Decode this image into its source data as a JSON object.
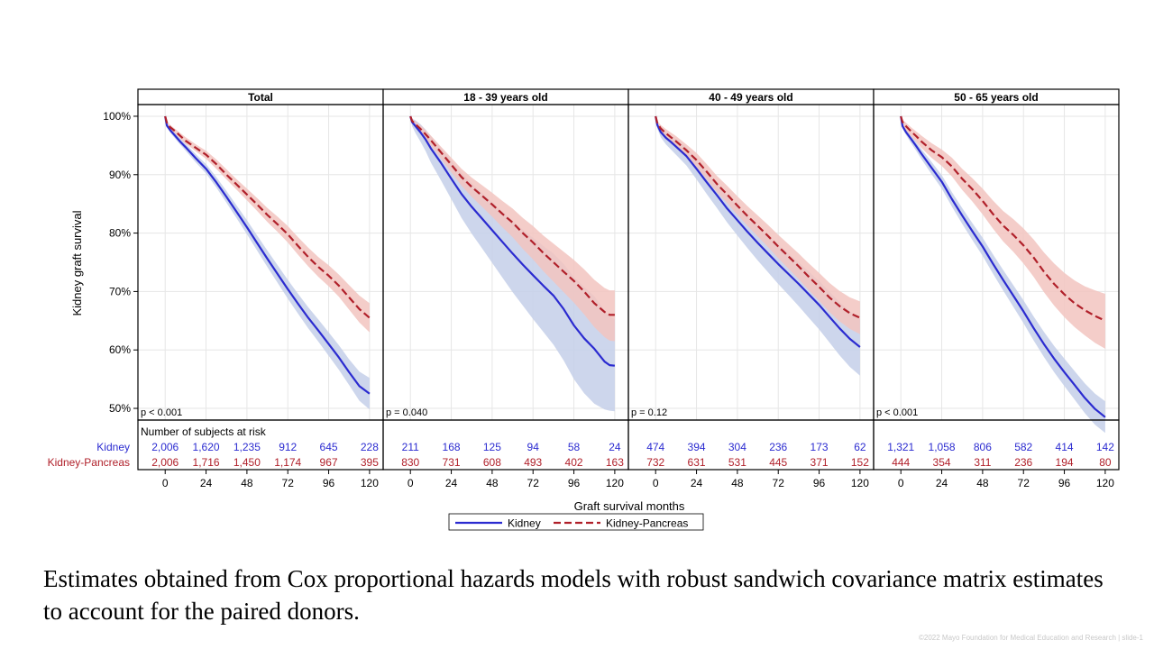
{
  "colors": {
    "kidney": "#2b2bd0",
    "kidney_pancreas": "#b0202a",
    "kidney_band": "#c4cfe9",
    "kidney_pancreas_band": "#f2c4c0"
  },
  "caption": "Estimates obtained from Cox proportional hazards models with robust sandwich covariance matrix estimates to account for the paired donors.",
  "footer": "©2022 Mayo Foundation for Medical Education and Research | slide-1",
  "chart_data": {
    "type": "line",
    "ylabel": "Kidney graft survival",
    "xlabel": "Graft survival months",
    "ylim": [
      48,
      102
    ],
    "xlim": [
      -16,
      128
    ],
    "yticks": [
      "100%",
      "90%",
      "80%",
      "70%",
      "60%",
      "50%"
    ],
    "ytick_values": [
      100,
      90,
      80,
      70,
      60,
      50
    ],
    "xticks": [
      "0",
      "24",
      "48",
      "72",
      "96",
      "120"
    ],
    "xtick_values": [
      0,
      24,
      48,
      72,
      96,
      120
    ],
    "grid": true,
    "legend": [
      "Kidney",
      "Kidney-Pancreas"
    ],
    "legend_position": "bottom",
    "at_risk_title": "Number of subjects at risk",
    "at_risk_labels": [
      "Kidney",
      "Kidney-Pancreas"
    ],
    "panels": [
      {
        "title": "Total",
        "pvalue": "p < 0.001",
        "at_risk": {
          "kidney": [
            "2,006",
            "1,620",
            "1,235",
            "912",
            "645",
            "228"
          ],
          "kidney_pancreas": [
            "2,006",
            "1,716",
            "1,450",
            "1,174",
            "967",
            "395"
          ]
        },
        "series": [
          {
            "name": "Kidney",
            "x": [
              0,
              1,
              3,
              6,
              9,
              12,
              18,
              24,
              30,
              36,
              42,
              48,
              54,
              60,
              66,
              72,
              78,
              84,
              90,
              96,
              102,
              108,
              114,
              120
            ],
            "y": [
              100,
              98.4,
              97.6,
              96.6,
              95.6,
              94.7,
              92.8,
              91.0,
              88.7,
              86.2,
              83.6,
              81.0,
              78.3,
              75.6,
              73.0,
              70.4,
              67.9,
              65.5,
              63.3,
              61.0,
              58.7,
              56.2,
              53.8,
              52.5
            ],
            "lower": [
              100,
              98.1,
              97.2,
              96.1,
              95.1,
              94.1,
              92.1,
              90.2,
              87.8,
              85.2,
              82.5,
              79.8,
              77.0,
              74.2,
              71.5,
              68.8,
              66.2,
              63.7,
              61.4,
              59.0,
              56.6,
              54.0,
              51.3,
              49.8
            ],
            "upper": [
              100,
              98.7,
              98.0,
              97.1,
              96.2,
              95.3,
              93.5,
              91.8,
              89.6,
              87.2,
              84.7,
              82.2,
              79.6,
              77.0,
              74.5,
              72.0,
              69.6,
              67.3,
              65.2,
              63.0,
              60.8,
              58.4,
              56.3,
              55.2
            ]
          },
          {
            "name": "Kidney-Pancreas",
            "x": [
              0,
              1,
              3,
              6,
              9,
              12,
              18,
              24,
              30,
              36,
              42,
              48,
              54,
              60,
              66,
              72,
              78,
              84,
              90,
              96,
              102,
              108,
              114,
              120
            ],
            "y": [
              100,
              98.9,
              98.1,
              97.4,
              96.6,
              95.8,
              94.6,
              93.4,
              91.8,
              90.0,
              88.3,
              86.6,
              84.9,
              83.1,
              81.5,
              79.8,
              77.8,
              75.9,
              74.2,
              72.7,
              71.0,
              69.0,
              67.0,
              65.5
            ],
            "lower": [
              100,
              98.6,
              97.8,
              97.0,
              96.1,
              95.3,
              94.0,
              92.7,
              91.0,
              89.2,
              87.4,
              85.6,
              83.8,
              81.9,
              80.2,
              78.4,
              76.3,
              74.3,
              72.5,
              70.9,
              69.1,
              66.9,
              64.7,
              63.0
            ],
            "upper": [
              100,
              99.2,
              98.5,
              97.8,
              97.1,
              96.4,
              95.2,
              94.1,
              92.6,
              90.9,
              89.2,
              87.6,
              86.0,
              84.3,
              82.8,
              81.2,
              79.3,
              77.5,
              75.9,
              74.5,
              72.9,
              71.1,
              69.3,
              68.0
            ]
          }
        ]
      },
      {
        "title": "18 - 39 years old",
        "pvalue": "p = 0.040",
        "at_risk": {
          "kidney": [
            "211",
            "168",
            "125",
            "94",
            "58",
            "24"
          ],
          "kidney_pancreas": [
            "830",
            "731",
            "608",
            "493",
            "402",
            "163"
          ]
        },
        "series": [
          {
            "name": "Kidney",
            "x": [
              0,
              1,
              3,
              6,
              9,
              12,
              18,
              24,
              30,
              36,
              42,
              48,
              54,
              60,
              66,
              72,
              78,
              84,
              90,
              96,
              102,
              108,
              114,
              117,
              120
            ],
            "y": [
              100,
              99.0,
              98.3,
              97.2,
              96.0,
              94.5,
              92.0,
              89.3,
              86.7,
              84.5,
              82.5,
              80.5,
              78.5,
              76.5,
              74.6,
              72.8,
              71.0,
              69.3,
              67.0,
              64.2,
              62.0,
              60.2,
              58.0,
              57.4,
              57.3
            ],
            "lower": [
              100,
              98.3,
              97.1,
              95.6,
              94.0,
              92.1,
              89.0,
              85.8,
              82.6,
              79.9,
              77.4,
              74.9,
              72.4,
              69.9,
              67.6,
              65.3,
              63.1,
              60.9,
              58.2,
              55.0,
              52.6,
              50.8,
              49.8,
              49.6,
              49.5
            ],
            "upper": [
              100,
              99.6,
              99.3,
              98.6,
              97.7,
              96.6,
              94.6,
              92.4,
              90.3,
              88.5,
              86.9,
              85.3,
              83.7,
              82.1,
              80.6,
              79.2,
              77.8,
              76.5,
              74.7,
              72.5,
              70.8,
              69.2,
              66.8,
              65.7,
              65.3
            ]
          },
          {
            "name": "Kidney-Pancreas",
            "x": [
              0,
              1,
              3,
              6,
              9,
              12,
              18,
              24,
              30,
              36,
              42,
              48,
              54,
              60,
              66,
              72,
              78,
              84,
              90,
              96,
              102,
              108,
              114,
              117,
              120
            ],
            "y": [
              100,
              99.2,
              98.6,
              97.8,
              96.9,
              95.9,
              93.8,
              91.7,
              89.6,
              87.9,
              86.4,
              84.9,
              83.3,
              81.8,
              80.0,
              78.4,
              76.6,
              75.0,
              73.4,
              71.8,
              70.0,
              68.0,
              66.5,
              66.0,
              66.0
            ],
            "lower": [
              100,
              98.9,
              98.1,
              97.2,
              96.1,
              95.0,
              92.7,
              90.4,
              88.1,
              86.2,
              84.5,
              82.8,
              81.0,
              79.3,
              77.3,
              75.5,
              73.5,
              71.7,
              69.9,
              68.1,
              66.1,
              63.9,
              62.2,
              61.6,
              61.5
            ],
            "upper": [
              100,
              99.5,
              99.1,
              98.4,
              97.6,
              96.7,
              94.8,
              92.9,
              91.0,
              89.5,
              88.2,
              86.9,
              85.5,
              84.2,
              82.6,
              81.2,
              79.6,
              78.2,
              76.8,
              75.4,
              73.8,
              72.0,
              70.6,
              70.2,
              70.2
            ]
          }
        ]
      },
      {
        "title": "40 - 49 years old",
        "pvalue": "p = 0.12",
        "at_risk": {
          "kidney": [
            "474",
            "394",
            "304",
            "236",
            "173",
            "62"
          ],
          "kidney_pancreas": [
            "732",
            "631",
            "531",
            "445",
            "371",
            "152"
          ]
        },
        "series": [
          {
            "name": "Kidney",
            "x": [
              0,
              1,
              3,
              6,
              9,
              12,
              18,
              24,
              30,
              36,
              42,
              48,
              54,
              60,
              66,
              72,
              78,
              84,
              90,
              96,
              102,
              108,
              114,
              120
            ],
            "y": [
              100,
              98.5,
              97.3,
              96.3,
              95.6,
              94.8,
              93.2,
              91.0,
              88.7,
              86.5,
              84.2,
              82.2,
              80.2,
              78.3,
              76.5,
              74.7,
              73.0,
              71.3,
              69.5,
              67.7,
              65.7,
              63.7,
              61.9,
              60.5
            ],
            "lower": [
              100,
              97.9,
              96.4,
              95.2,
              94.3,
              93.4,
              91.6,
              89.2,
              86.7,
              84.3,
              81.8,
              79.6,
              77.4,
              75.3,
              73.3,
              71.3,
              69.4,
              67.5,
              65.5,
              63.5,
              61.3,
              59.1,
              57.1,
              55.6
            ],
            "upper": [
              100,
              99.0,
              98.1,
              97.3,
              96.7,
              96.1,
              94.7,
              92.7,
              90.6,
              88.6,
              86.5,
              84.7,
              82.9,
              81.2,
              79.6,
              78.0,
              76.5,
              75.0,
              73.4,
              71.8,
              70.0,
              68.2,
              66.6,
              65.4
            ]
          },
          {
            "name": "Kidney-Pancreas",
            "x": [
              0,
              1,
              3,
              6,
              9,
              12,
              18,
              24,
              30,
              36,
              42,
              48,
              54,
              60,
              66,
              72,
              78,
              84,
              90,
              96,
              102,
              108,
              114,
              120
            ],
            "y": [
              100,
              98.8,
              97.9,
              97.1,
              96.4,
              95.7,
              94.2,
              92.5,
              90.5,
              88.4,
              86.6,
              84.7,
              82.9,
              81.2,
              79.5,
              77.7,
              76.0,
              74.3,
              72.5,
              70.8,
              69.0,
              67.5,
              66.3,
              65.5
            ],
            "lower": [
              100,
              98.4,
              97.3,
              96.4,
              95.6,
              94.8,
              93.2,
              91.3,
              89.2,
              87.0,
              85.1,
              83.1,
              81.2,
              79.4,
              77.6,
              75.7,
              73.9,
              72.1,
              70.2,
              68.4,
              66.5,
              64.9,
              63.6,
              62.7
            ],
            "upper": [
              100,
              99.2,
              98.5,
              97.8,
              97.2,
              96.6,
              95.2,
              93.7,
              91.8,
              89.8,
              88.1,
              86.3,
              84.6,
              83.0,
              81.4,
              79.7,
              78.1,
              76.5,
              74.8,
              73.2,
              71.5,
              70.1,
              69.0,
              68.3
            ]
          }
        ]
      },
      {
        "title": "50 - 65 years old",
        "pvalue": "p < 0.001",
        "at_risk": {
          "kidney": [
            "1,321",
            "1,058",
            "806",
            "582",
            "414",
            "142"
          ],
          "kidney_pancreas": [
            "444",
            "354",
            "311",
            "236",
            "194",
            "80"
          ]
        },
        "series": [
          {
            "name": "Kidney",
            "x": [
              0,
              1,
              3,
              6,
              9,
              12,
              18,
              24,
              30,
              36,
              42,
              48,
              54,
              60,
              66,
              72,
              78,
              84,
              90,
              96,
              102,
              108,
              114,
              120
            ],
            "y": [
              100,
              98.3,
              97.3,
              96.1,
              94.9,
              93.6,
              91.2,
              88.8,
              85.8,
              83.0,
              80.3,
              77.7,
              74.8,
              72.0,
              69.3,
              66.6,
              63.7,
              61.0,
              58.5,
              56.2,
              54.0,
              51.8,
              49.9,
              48.5
            ],
            "lower": [
              100,
              97.9,
              96.8,
              95.4,
              94.1,
              92.7,
              90.1,
              87.6,
              84.5,
              81.6,
              78.8,
              76.1,
              73.1,
              70.2,
              67.4,
              64.6,
              61.6,
              58.8,
              56.2,
              53.8,
              51.5,
              49.2,
              47.2,
              45.8
            ],
            "upper": [
              100,
              98.7,
              97.8,
              96.7,
              95.6,
              94.4,
              92.2,
              89.9,
              87.0,
              84.3,
              81.7,
              79.2,
              76.4,
              73.7,
              71.1,
              68.5,
              65.7,
              63.1,
              60.7,
              58.5,
              56.4,
              54.3,
              52.5,
              51.2
            ]
          },
          {
            "name": "Kidney-Pancreas",
            "x": [
              0,
              1,
              3,
              6,
              9,
              12,
              18,
              24,
              30,
              36,
              42,
              48,
              54,
              60,
              66,
              72,
              78,
              84,
              90,
              96,
              102,
              108,
              114,
              120
            ],
            "y": [
              100,
              99.0,
              98.3,
              97.4,
              96.6,
              95.7,
              94.2,
              93.0,
              91.4,
              89.3,
              87.5,
              85.5,
              83.3,
              81.3,
              79.7,
              77.9,
              75.8,
              73.4,
              71.3,
              69.5,
              68.0,
              66.8,
              65.8,
              65.0
            ],
            "lower": [
              100,
              98.5,
              97.6,
              96.6,
              95.6,
              94.6,
              92.9,
              91.5,
              89.7,
              87.4,
              85.4,
              83.2,
              80.8,
              78.6,
              76.8,
              74.8,
              72.5,
              69.9,
              67.6,
              65.6,
              63.9,
              62.5,
              61.2,
              60.2
            ],
            "upper": [
              100,
              99.4,
              98.9,
              98.1,
              97.4,
              96.7,
              95.4,
              94.3,
              92.9,
              91.0,
              89.4,
              87.6,
              85.6,
              83.8,
              82.4,
              80.8,
              78.9,
              76.7,
              74.8,
              73.2,
              71.9,
              70.9,
              70.2,
              69.6
            ]
          }
        ]
      }
    ]
  }
}
